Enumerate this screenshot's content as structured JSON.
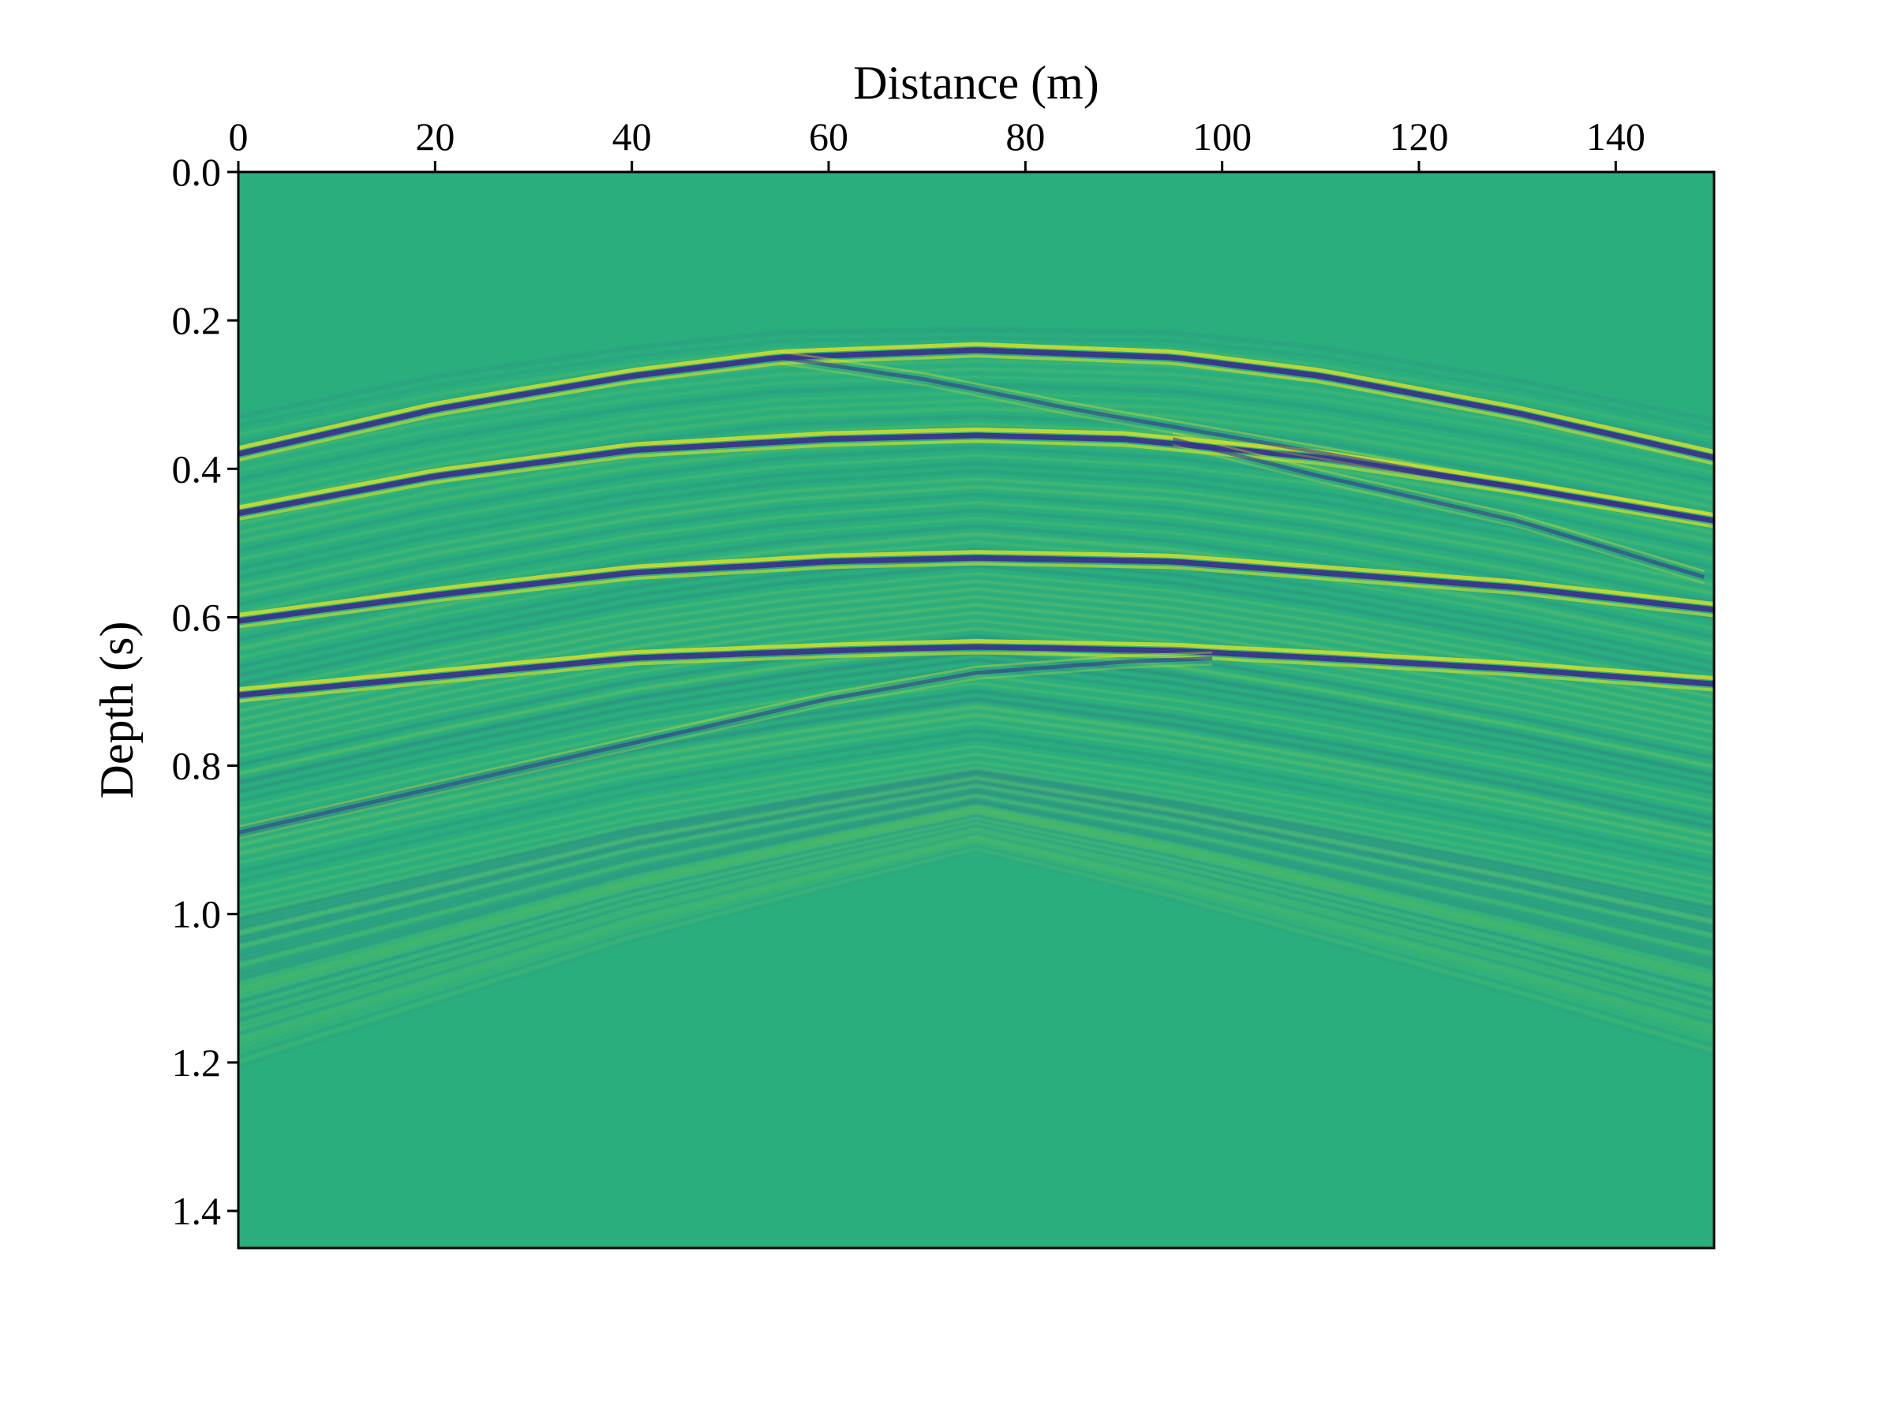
{
  "chart_data": {
    "type": "heatmap",
    "title": "",
    "xlabel": "Distance (m)",
    "ylabel": "Depth (s)",
    "xlim": [
      0,
      150
    ],
    "ylim": [
      0,
      1.45
    ],
    "x_axis_position": "top",
    "y_axis_inverted": true,
    "grid": false,
    "legend": "none",
    "colormap": "viridis",
    "background_color": "#2aae7e",
    "trough_color": "#3b2e8c",
    "peak_color": "#e8e620",
    "x_ticks": [
      {
        "value": 0,
        "label": "0"
      },
      {
        "value": 20,
        "label": "20"
      },
      {
        "value": 40,
        "label": "40"
      },
      {
        "value": 60,
        "label": "60"
      },
      {
        "value": 80,
        "label": "80"
      },
      {
        "value": 100,
        "label": "100"
      },
      {
        "value": 120,
        "label": "120"
      },
      {
        "value": 140,
        "label": "140"
      }
    ],
    "y_ticks": [
      {
        "value": 0.0,
        "label": "0.0"
      },
      {
        "value": 0.2,
        "label": "0.2"
      },
      {
        "value": 0.4,
        "label": "0.4"
      },
      {
        "value": 0.6,
        "label": "0.6"
      },
      {
        "value": 0.8,
        "label": "0.8"
      },
      {
        "value": 1.0,
        "label": "1.0"
      },
      {
        "value": 1.2,
        "label": "1.2"
      },
      {
        "value": 1.4,
        "label": "1.4"
      }
    ],
    "reflections": [
      {
        "x": [
          0,
          20,
          40,
          55,
          75,
          95,
          110,
          130,
          150
        ],
        "y": [
          0.38,
          0.32,
          0.275,
          0.25,
          0.24,
          0.25,
          0.275,
          0.325,
          0.385
        ]
      },
      {
        "x": [
          0,
          20,
          40,
          60,
          75,
          90,
          110,
          130,
          150
        ],
        "y": [
          0.46,
          0.41,
          0.375,
          0.36,
          0.355,
          0.36,
          0.385,
          0.425,
          0.47
        ]
      },
      {
        "x": [
          0,
          20,
          40,
          60,
          75,
          95,
          110,
          130,
          150
        ],
        "y": [
          0.605,
          0.57,
          0.54,
          0.525,
          0.52,
          0.525,
          0.54,
          0.56,
          0.59
        ]
      },
      {
        "x": [
          0,
          20,
          40,
          60,
          75,
          95,
          110,
          130,
          150
        ],
        "y": [
          0.705,
          0.68,
          0.655,
          0.645,
          0.64,
          0.645,
          0.655,
          0.67,
          0.69
        ]
      },
      {
        "x": [
          0,
          20,
          40,
          60,
          75,
          90,
          100
        ],
        "y": [
          0.89,
          0.83,
          0.77,
          0.71,
          0.675,
          0.66,
          0.655
        ]
      },
      {
        "x": [
          55,
          70,
          85,
          100,
          115,
          130,
          150
        ],
        "y": [
          0.25,
          0.28,
          0.32,
          0.355,
          0.39,
          0.425,
          0.47
        ]
      },
      {
        "x": [
          95,
          110,
          130,
          150
        ],
        "y": [
          0.36,
          0.41,
          0.47,
          0.55
        ]
      }
    ]
  }
}
